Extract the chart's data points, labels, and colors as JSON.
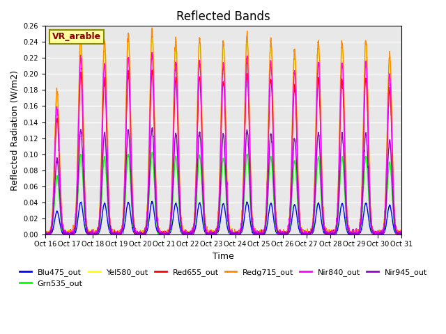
{
  "title": "Reflected Bands",
  "xlabel": "Time",
  "ylabel": "Reflected Radiation (W/m2)",
  "annotation": "VR_arable",
  "ylim": [
    0,
    0.26
  ],
  "yticks": [
    0.0,
    0.02,
    0.04,
    0.06,
    0.08,
    0.1,
    0.12,
    0.14,
    0.16,
    0.18,
    0.2,
    0.22,
    0.24,
    0.26
  ],
  "xtick_labels": [
    "Oct 16",
    "Oct 17",
    "Oct 18",
    "Oct 19",
    "Oct 20",
    "Oct 21",
    "Oct 22",
    "Oct 23",
    "Oct 24",
    "Oct 25",
    "Oct 26",
    "Oct 27",
    "Oct 28",
    "Oct 29",
    "Oct 30",
    "Oct 31"
  ],
  "n_days": 15,
  "pts_per_day": 144,
  "day_peak_factors": [
    0.72,
    1.0,
    0.97,
    1.0,
    1.02,
    0.97,
    0.98,
    0.96,
    1.0,
    0.97,
    0.92,
    0.97,
    0.96,
    0.97,
    0.9
  ],
  "series": [
    {
      "name": "Blu475_out",
      "color": "#0000FF",
      "peak_scale": 0.04,
      "lw": 1.0
    },
    {
      "name": "Grn535_out",
      "color": "#00FF00",
      "peak_scale": 0.1,
      "lw": 1.0
    },
    {
      "name": "Yel580_out",
      "color": "#FFFF00",
      "peak_scale": 0.24,
      "lw": 1.0
    },
    {
      "name": "Red655_out",
      "color": "#FF0000",
      "peak_scale": 0.2,
      "lw": 1.0
    },
    {
      "name": "Redg715_out",
      "color": "#FF8800",
      "peak_scale": 0.25,
      "lw": 1.0
    },
    {
      "name": "Nir840_out",
      "color": "#FF00FF",
      "peak_scale": 0.22,
      "lw": 1.0
    },
    {
      "name": "Nir945_out",
      "color": "#9900CC",
      "peak_scale": 0.13,
      "lw": 1.0
    }
  ],
  "bg_color": "#E8E8E8",
  "grid_color": "#FFFFFF",
  "legend_fontsize": 8,
  "title_fontsize": 12,
  "tick_fontsize": 7,
  "axis_label_fontsize": 9
}
